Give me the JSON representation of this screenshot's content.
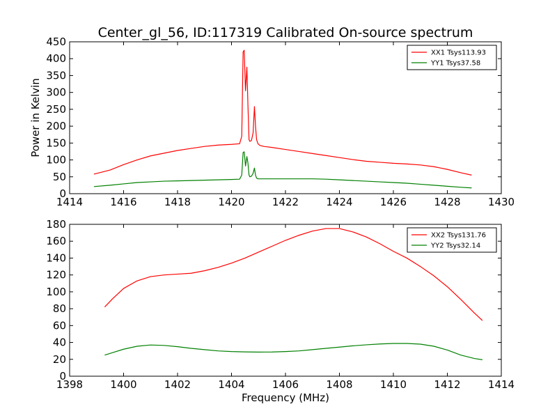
{
  "page": {
    "title": "Center_gl_56, ID:117319 Calibrated On-source spectrum"
  },
  "chart_data": [
    {
      "type": "line",
      "title": "Center_gl_56, ID:117319 Calibrated On-source spectrum",
      "xlabel": "",
      "ylabel": "Power in Kelvin",
      "xlim": [
        1414,
        1430
      ],
      "ylim": [
        0,
        450
      ],
      "xticks": [
        1414,
        1416,
        1418,
        1420,
        1422,
        1424,
        1426,
        1428,
        1430
      ],
      "yticks": [
        0,
        50,
        100,
        150,
        200,
        250,
        300,
        350,
        400,
        450
      ],
      "legend_position": "top-right",
      "grid": false,
      "series": [
        {
          "name": "XX1 Tsys113.93",
          "color": "#ff0000",
          "x": [
            1414.9,
            1415.5,
            1416.0,
            1416.5,
            1417.0,
            1417.5,
            1418.0,
            1418.5,
            1419.0,
            1419.5,
            1420.0,
            1420.3,
            1420.38,
            1420.43,
            1420.47,
            1420.52,
            1420.57,
            1420.61,
            1420.65,
            1420.68,
            1420.74,
            1420.8,
            1420.85,
            1420.89,
            1420.93,
            1420.98,
            1421.05,
            1421.2,
            1421.5,
            1422.0,
            1422.5,
            1423.0,
            1423.5,
            1424.0,
            1424.5,
            1425.0,
            1425.5,
            1426.0,
            1426.5,
            1427.0,
            1427.5,
            1428.0,
            1428.5,
            1428.9
          ],
          "y": [
            58,
            70,
            86,
            100,
            112,
            120,
            128,
            134,
            140,
            144,
            146,
            148,
            170,
            420,
            425,
            305,
            375,
            260,
            160,
            155,
            158,
            180,
            258,
            200,
            160,
            148,
            143,
            140,
            137,
            131,
            125,
            119,
            113,
            107,
            101,
            96,
            93,
            90,
            88,
            85,
            80,
            72,
            62,
            55
          ]
        },
        {
          "name": "YY1 Tsys37.58",
          "color": "#008000",
          "x": [
            1414.9,
            1415.5,
            1416.0,
            1416.5,
            1417.0,
            1417.5,
            1418.0,
            1418.5,
            1419.0,
            1419.5,
            1420.0,
            1420.3,
            1420.38,
            1420.43,
            1420.47,
            1420.52,
            1420.57,
            1420.61,
            1420.65,
            1420.68,
            1420.74,
            1420.8,
            1420.85,
            1420.89,
            1420.93,
            1420.98,
            1421.05,
            1421.2,
            1421.5,
            1422.0,
            1422.5,
            1423.0,
            1423.5,
            1424.0,
            1424.5,
            1425.0,
            1425.5,
            1426.0,
            1426.5,
            1427.0,
            1427.5,
            1428.0,
            1428.5,
            1428.9
          ],
          "y": [
            21,
            25,
            29,
            33,
            35,
            37,
            38,
            39,
            40,
            41,
            42,
            43,
            55,
            122,
            124,
            82,
            110,
            90,
            55,
            50,
            52,
            60,
            76,
            55,
            46,
            44,
            44,
            44,
            44,
            44,
            44,
            44,
            43,
            41,
            39,
            37,
            35,
            33,
            31,
            28,
            25,
            22,
            19,
            17
          ]
        }
      ]
    },
    {
      "type": "line",
      "title": "",
      "xlabel": "Frequency (MHz)",
      "ylabel": "",
      "xlim": [
        1398,
        1414
      ],
      "ylim": [
        0,
        180
      ],
      "xticks": [
        1398,
        1400,
        1402,
        1404,
        1406,
        1408,
        1410,
        1412,
        1414
      ],
      "yticks": [
        0,
        20,
        40,
        60,
        80,
        100,
        120,
        140,
        160,
        180
      ],
      "legend_position": "top-right",
      "grid": false,
      "series": [
        {
          "name": "XX2 Tsys131.76",
          "color": "#ff0000",
          "x": [
            1399.3,
            1399.6,
            1400.0,
            1400.5,
            1401.0,
            1401.5,
            1402.0,
            1402.5,
            1403.0,
            1403.5,
            1404.0,
            1404.5,
            1405.0,
            1405.5,
            1406.0,
            1406.5,
            1407.0,
            1407.5,
            1408.0,
            1408.5,
            1409.0,
            1409.5,
            1410.0,
            1410.5,
            1411.0,
            1411.5,
            1412.0,
            1412.5,
            1413.0,
            1413.3
          ],
          "y": [
            82,
            92,
            104,
            113,
            118,
            120,
            121,
            122,
            125,
            129,
            134,
            140,
            147,
            154,
            161,
            167,
            172,
            175,
            175,
            171,
            165,
            157,
            148,
            140,
            130,
            119,
            106,
            91,
            75,
            66
          ]
        },
        {
          "name": "YY2 Tsys32.14",
          "color": "#008000",
          "x": [
            1399.3,
            1399.6,
            1400.0,
            1400.5,
            1401.0,
            1401.5,
            1402.0,
            1402.5,
            1403.0,
            1403.5,
            1404.0,
            1404.5,
            1405.0,
            1405.5,
            1406.0,
            1406.5,
            1407.0,
            1407.5,
            1408.0,
            1408.5,
            1409.0,
            1409.5,
            1410.0,
            1410.5,
            1411.0,
            1411.5,
            1412.0,
            1412.5,
            1413.0,
            1413.3
          ],
          "y": [
            25,
            28,
            32,
            35.5,
            37,
            36.5,
            35,
            33,
            31.5,
            30,
            29.2,
            28.8,
            28.6,
            28.7,
            29.2,
            30,
            31.5,
            33,
            34.5,
            36,
            37.2,
            38.2,
            38.8,
            38.8,
            38,
            35.5,
            31,
            25,
            21,
            19.5
          ]
        }
      ]
    }
  ]
}
